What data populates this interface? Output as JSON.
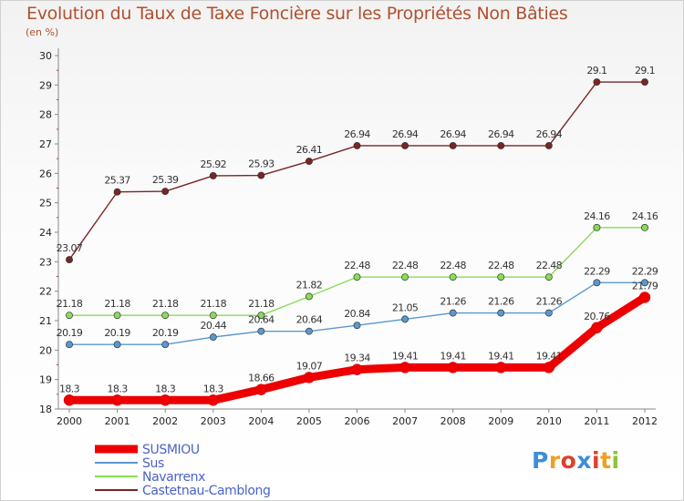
{
  "chart_data": {
    "type": "line",
    "title": "Evolution du Taux de Taxe Foncière sur les Propriétés Non Bâties",
    "ylabel": "(en %)",
    "ylim": [
      18,
      30
    ],
    "ytick_labels": [
      "18",
      "19",
      "20",
      "21",
      "22",
      "23",
      "24",
      "25",
      "26",
      "27",
      "28",
      "29",
      "30"
    ],
    "categories": [
      "2000",
      "2001",
      "2002",
      "2003",
      "2004",
      "2005",
      "2006",
      "2007",
      "2008",
      "2009",
      "2010",
      "2011",
      "2012"
    ],
    "series": [
      {
        "name": "SUSMIOU",
        "color": "#ee0000",
        "values": [
          18.3,
          18.3,
          18.3,
          18.3,
          18.66,
          19.07,
          19.34,
          19.41,
          19.41,
          19.41,
          19.41,
          20.76,
          21.79
        ],
        "labels": [
          "18.3",
          "18.3",
          "18.3",
          "18.3",
          "18.66",
          "19.07",
          "19.34",
          "19.41",
          "19.41",
          "19.41",
          "19.41",
          "20.76",
          "21.79"
        ]
      },
      {
        "name": "Sus",
        "color": "#5a98d0",
        "values": [
          20.19,
          20.19,
          20.19,
          20.44,
          20.64,
          20.64,
          20.84,
          21.05,
          21.26,
          21.26,
          21.26,
          22.29,
          22.29
        ],
        "labels": [
          "20.19",
          "20.19",
          "20.19",
          "20.44",
          "20.64",
          "20.64",
          "20.84",
          "21.05",
          "21.26",
          "21.26",
          "21.26",
          "22.29",
          "22.29"
        ]
      },
      {
        "name": "Navarrenx",
        "color": "#88dd55",
        "values": [
          21.18,
          21.18,
          21.18,
          21.18,
          21.18,
          21.82,
          22.48,
          22.48,
          22.48,
          22.48,
          22.48,
          24.16,
          24.16
        ],
        "labels": [
          "21.18",
          "21.18",
          "21.18",
          "21.18",
          "21.18",
          "21.82",
          "22.48",
          "22.48",
          "22.48",
          "22.48",
          "22.48",
          "24.16",
          "24.16"
        ]
      },
      {
        "name": "Castetnau-Camblong",
        "color": "#7a2525",
        "values": [
          23.07,
          25.37,
          25.39,
          25.92,
          25.93,
          26.41,
          26.94,
          26.94,
          26.94,
          26.94,
          26.94,
          29.1,
          29.1
        ],
        "labels": [
          "23.07",
          "25.37",
          "25.39",
          "25.92",
          "25.93",
          "26.41",
          "26.94",
          "26.94",
          "26.94",
          "26.94",
          "26.94",
          "29.1",
          "29.1"
        ]
      }
    ],
    "grid": false,
    "legend_position": "bottom-left"
  },
  "logo": {
    "letters": [
      "P",
      "r",
      "o",
      "x",
      "i",
      "t",
      "i"
    ],
    "colors": [
      "#3d8ed8",
      "#f0a020",
      "#e0402a",
      "#3d8ed8",
      "#e0402a",
      "#f0a020",
      "#8ac43a"
    ]
  }
}
